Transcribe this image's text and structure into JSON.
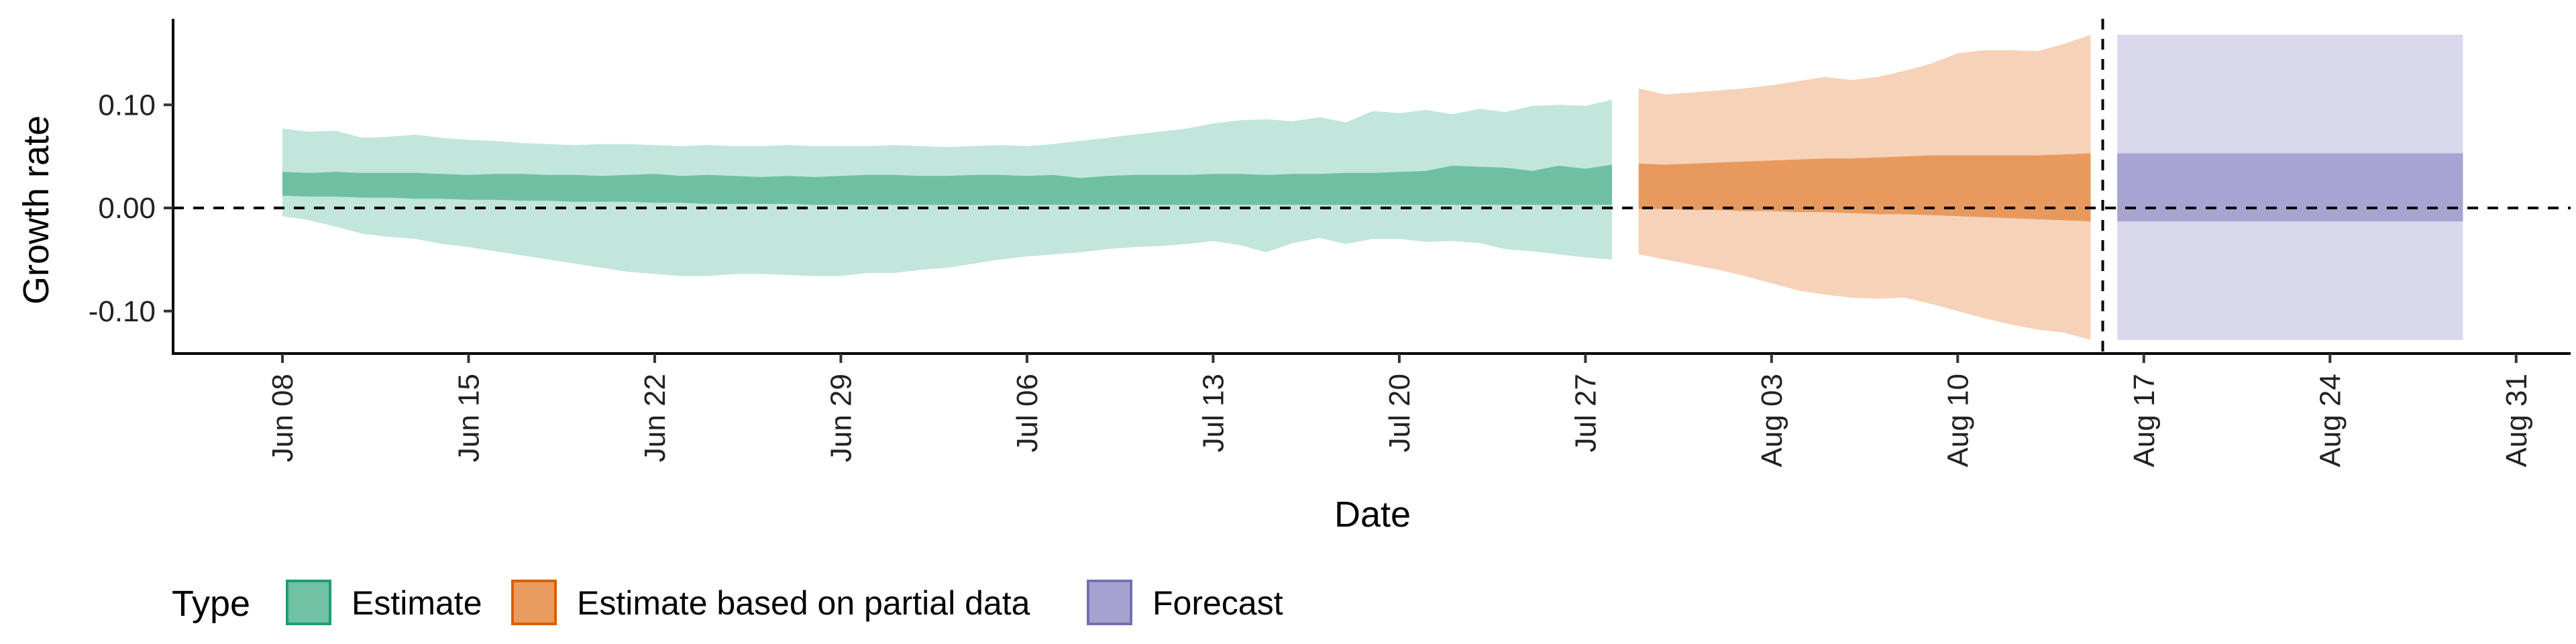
{
  "chart_data": {
    "type": "area",
    "title": "",
    "xlabel": "Date",
    "ylabel": "Growth rate",
    "x_ticks": [
      "Jun 08",
      "Jun 15",
      "Jun 22",
      "Jun 29",
      "Jul 06",
      "Jul 13",
      "Jul 20",
      "Jul 27",
      "Aug 03",
      "Aug 10",
      "Aug 17",
      "Aug 24",
      "Aug 31"
    ],
    "y_ticks": [
      "0.10",
      "0.00",
      "-0.10"
    ],
    "y_tick_values": [
      0.1,
      0.0,
      -0.1
    ],
    "xlim": [
      "2020-06-04",
      "2020-09-02"
    ],
    "ylim": [
      -0.14,
      0.18
    ],
    "grid": false,
    "reference_lines": [
      {
        "axis": "y",
        "value": 0.0,
        "style": "dashed"
      },
      {
        "axis": "x",
        "value": "2020-08-15",
        "style": "dashed"
      }
    ],
    "legend": {
      "title": "Type",
      "position": "bottom-left",
      "entries": [
        {
          "label": "Estimate",
          "fill": "#71c1a4",
          "stroke": "#1b9e77"
        },
        {
          "label": "Estimate based on partial data",
          "fill": "#e99a5e",
          "stroke": "#d95f02"
        },
        {
          "label": "Forecast",
          "fill": "#a7a3d0",
          "stroke": "#7570b3"
        }
      ]
    },
    "series": [
      {
        "name": "Estimate",
        "colors": {
          "outer": "#c3e6dc",
          "inner": "#6fc0a2"
        },
        "x": [
          "2020-06-08",
          "2020-06-09",
          "2020-06-10",
          "2020-06-11",
          "2020-06-12",
          "2020-06-13",
          "2020-06-14",
          "2020-06-15",
          "2020-06-16",
          "2020-06-17",
          "2020-06-18",
          "2020-06-19",
          "2020-06-20",
          "2020-06-21",
          "2020-06-22",
          "2020-06-23",
          "2020-06-24",
          "2020-06-25",
          "2020-06-26",
          "2020-06-27",
          "2020-06-28",
          "2020-06-29",
          "2020-06-30",
          "2020-07-01",
          "2020-07-02",
          "2020-07-03",
          "2020-07-04",
          "2020-07-05",
          "2020-07-06",
          "2020-07-07",
          "2020-07-08",
          "2020-07-09",
          "2020-07-10",
          "2020-07-11",
          "2020-07-12",
          "2020-07-13",
          "2020-07-14",
          "2020-07-15",
          "2020-07-16",
          "2020-07-17",
          "2020-07-18",
          "2020-07-19",
          "2020-07-20",
          "2020-07-21",
          "2020-07-22",
          "2020-07-23",
          "2020-07-24",
          "2020-07-25",
          "2020-07-26",
          "2020-07-27",
          "2020-07-28"
        ],
        "upper90": [
          0.077,
          0.074,
          0.075,
          0.068,
          0.069,
          0.071,
          0.068,
          0.066,
          0.065,
          0.063,
          0.062,
          0.061,
          0.062,
          0.062,
          0.061,
          0.06,
          0.061,
          0.06,
          0.06,
          0.061,
          0.06,
          0.06,
          0.06,
          0.061,
          0.06,
          0.059,
          0.06,
          0.061,
          0.06,
          0.062,
          0.065,
          0.068,
          0.071,
          0.074,
          0.077,
          0.082,
          0.085,
          0.086,
          0.084,
          0.088,
          0.083,
          0.094,
          0.092,
          0.095,
          0.091,
          0.096,
          0.093,
          0.099,
          0.1,
          0.099,
          0.105
        ],
        "upper50": [
          0.035,
          0.034,
          0.035,
          0.034,
          0.034,
          0.034,
          0.033,
          0.032,
          0.033,
          0.033,
          0.032,
          0.032,
          0.031,
          0.032,
          0.033,
          0.031,
          0.032,
          0.031,
          0.03,
          0.031,
          0.03,
          0.031,
          0.032,
          0.032,
          0.031,
          0.031,
          0.032,
          0.032,
          0.031,
          0.032,
          0.029,
          0.031,
          0.032,
          0.032,
          0.032,
          0.033,
          0.033,
          0.032,
          0.033,
          0.033,
          0.034,
          0.034,
          0.035,
          0.036,
          0.041,
          0.04,
          0.039,
          0.036,
          0.041,
          0.038,
          0.042
        ],
        "lower50": [
          0.012,
          0.011,
          0.011,
          0.01,
          0.01,
          0.009,
          0.009,
          0.008,
          0.008,
          0.007,
          0.007,
          0.006,
          0.006,
          0.006,
          0.005,
          0.005,
          0.004,
          0.004,
          0.004,
          0.004,
          0.003,
          0.003,
          0.003,
          0.003,
          0.003,
          0.003,
          0.003,
          0.003,
          0.003,
          0.003,
          0.003,
          0.003,
          0.003,
          0.003,
          0.003,
          0.003,
          0.003,
          0.003,
          0.003,
          0.003,
          0.003,
          0.003,
          0.003,
          0.003,
          0.003,
          0.003,
          0.003,
          0.003,
          0.003,
          0.003,
          0.003
        ],
        "lower90": [
          -0.008,
          -0.012,
          -0.018,
          -0.025,
          -0.028,
          -0.03,
          -0.035,
          -0.038,
          -0.042,
          -0.046,
          -0.05,
          -0.054,
          -0.058,
          -0.062,
          -0.064,
          -0.066,
          -0.066,
          -0.064,
          -0.064,
          -0.065,
          -0.066,
          -0.066,
          -0.063,
          -0.063,
          -0.06,
          -0.058,
          -0.054,
          -0.05,
          -0.047,
          -0.045,
          -0.043,
          -0.04,
          -0.038,
          -0.037,
          -0.035,
          -0.032,
          -0.036,
          -0.043,
          -0.034,
          -0.029,
          -0.035,
          -0.03,
          -0.03,
          -0.033,
          -0.032,
          -0.034,
          -0.04,
          -0.042,
          -0.045,
          -0.048,
          -0.05
        ]
      },
      {
        "name": "Estimate based on partial data",
        "colors": {
          "outer": "#f6d3b8",
          "inner": "#e89a5e"
        },
        "x": [
          "2020-07-29",
          "2020-07-30",
          "2020-07-31",
          "2020-08-01",
          "2020-08-02",
          "2020-08-03",
          "2020-08-04",
          "2020-08-05",
          "2020-08-06",
          "2020-08-07",
          "2020-08-08",
          "2020-08-09",
          "2020-08-10",
          "2020-08-11",
          "2020-08-12",
          "2020-08-13",
          "2020-08-14",
          "2020-08-15"
        ],
        "upper90": [
          0.116,
          0.11,
          0.112,
          0.114,
          0.116,
          0.119,
          0.123,
          0.127,
          0.124,
          0.127,
          0.133,
          0.14,
          0.15,
          0.153,
          0.153,
          0.152,
          0.159,
          0.168
        ],
        "upper50": [
          0.043,
          0.042,
          0.043,
          0.044,
          0.045,
          0.046,
          0.047,
          0.048,
          0.048,
          0.049,
          0.05,
          0.051,
          0.051,
          0.051,
          0.051,
          0.051,
          0.052,
          0.053
        ],
        "lower50": [
          -0.001,
          -0.001,
          -0.002,
          -0.002,
          -0.003,
          -0.003,
          -0.004,
          -0.004,
          -0.005,
          -0.006,
          -0.006,
          -0.007,
          -0.008,
          -0.009,
          -0.01,
          -0.011,
          -0.012,
          -0.013
        ],
        "lower90": [
          -0.045,
          -0.05,
          -0.055,
          -0.06,
          -0.066,
          -0.073,
          -0.08,
          -0.084,
          -0.087,
          -0.088,
          -0.087,
          -0.093,
          -0.1,
          -0.107,
          -0.113,
          -0.118,
          -0.121,
          -0.128
        ]
      },
      {
        "name": "Forecast",
        "colors": {
          "outer": "#d9d8ec",
          "inner": "#a8a4d1"
        },
        "x": [
          "2020-08-16",
          "2020-08-29"
        ],
        "upper90": [
          0.168,
          0.168
        ],
        "upper50": [
          0.053,
          0.053
        ],
        "lower50": [
          -0.013,
          -0.013
        ],
        "lower90": [
          -0.128,
          -0.128
        ]
      }
    ]
  }
}
